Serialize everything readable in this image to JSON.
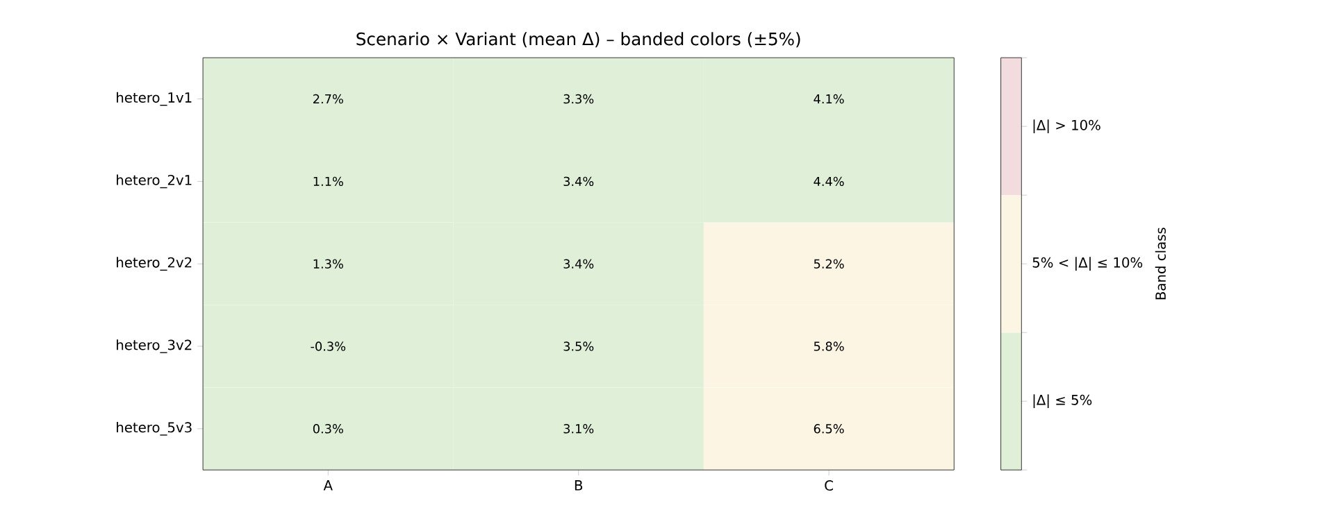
{
  "chart_data": {
    "type": "heatmap",
    "title": "Scenario × Variant (mean Δ) – banded colors (±5%)",
    "categories": [
      "A",
      "B",
      "C"
    ],
    "y_categories": [
      "hetero_1v1",
      "hetero_2v1",
      "hetero_2v2",
      "hetero_3v2",
      "hetero_5v3"
    ],
    "cells": [
      [
        2.7,
        3.3,
        4.1
      ],
      [
        1.1,
        3.4,
        4.4
      ],
      [
        1.3,
        3.4,
        5.2
      ],
      [
        -0.3,
        3.5,
        5.8
      ],
      [
        0.3,
        3.1,
        6.5
      ]
    ],
    "cell_labels": [
      [
        "2.7%",
        "3.3%",
        "4.1%"
      ],
      [
        "1.1%",
        "3.4%",
        "4.4%"
      ],
      [
        "1.3%",
        "3.4%",
        "5.2%"
      ],
      [
        "-0.3%",
        "3.5%",
        "5.8%"
      ],
      [
        "0.3%",
        "3.1%",
        "6.5%"
      ]
    ],
    "colors": [
      "#dfefd8",
      "#fcf5e3",
      "#f2dcde"
    ],
    "clabel": "Band class",
    "clim": [
      0,
      15
    ],
    "cticks": [
      {
        "value": 0,
        "label": null
      },
      {
        "value": 2.5,
        "label": "|Δ| ≤ 5%"
      },
      {
        "value": 5,
        "label": null
      },
      {
        "value": 7.5,
        "label": "5% < |Δ| ≤ 10%"
      },
      {
        "value": 10,
        "label": null
      },
      {
        "value": 12.5,
        "label": "|Δ| > 10%"
      },
      {
        "value": 15,
        "label": null
      }
    ]
  }
}
